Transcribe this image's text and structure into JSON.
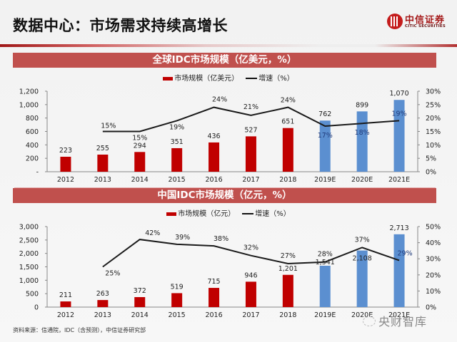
{
  "header": {
    "title": "数据中心：市场需求持续高增长",
    "logo_cn": "中信证券",
    "logo_en": "CITIC SECURITIES"
  },
  "colors": {
    "actual_bar": "#c00000",
    "forecast_bar": "#5b8fd0",
    "growth_line": "#1a1a1a",
    "banner": "#c0504d",
    "forecast_label": "#1f3a7a"
  },
  "chart_data": [
    {
      "type": "bar",
      "title": "全球IDC市场规模（亿美元，%）",
      "legend": {
        "bar": "市场规模（亿美元）",
        "line": "增速（%）"
      },
      "legend_position": "top-center",
      "categories": [
        "2012",
        "2013",
        "2014",
        "2015",
        "2016",
        "2017",
        "2018",
        "2019E",
        "2020E",
        "2021E"
      ],
      "series": [
        {
          "name": "市场规模（亿美元）",
          "type": "bar",
          "axis": "left",
          "values": [
            223,
            255,
            294,
            351,
            436,
            527,
            651,
            762,
            899,
            1070
          ],
          "labels": [
            "223",
            "255",
            "294",
            "351",
            "436",
            "527",
            "651",
            "762",
            "899",
            "1,070"
          ],
          "forecast_from_index": 7
        },
        {
          "name": "增速（%）",
          "type": "line",
          "axis": "right",
          "values": [
            null,
            15,
            15,
            19,
            24,
            21,
            24,
            17,
            18,
            19
          ],
          "labels": [
            "",
            "15%",
            "15%",
            "19%",
            "24%",
            "21%",
            "24%",
            "17%",
            "18%",
            "19%"
          ]
        }
      ],
      "y_left": {
        "ylim": [
          0,
          1200
        ],
        "ticks": [
          "-",
          "200",
          "400",
          "600",
          "800",
          "1,000",
          "1,200"
        ]
      },
      "y_right": {
        "ylim": [
          0,
          30
        ],
        "ticks": [
          "0%",
          "5%",
          "10%",
          "15%",
          "20%",
          "25%",
          "30%"
        ]
      },
      "grid": false
    },
    {
      "type": "bar",
      "title": "中国IDC市场规模（亿元，%）",
      "legend": {
        "bar": "市场规模（亿元）",
        "line": "增速（%）"
      },
      "legend_position": "top-center",
      "categories": [
        "2012",
        "2013",
        "2014",
        "2015",
        "2016",
        "2017",
        "2018",
        "2019E",
        "2020E",
        "2021E"
      ],
      "series": [
        {
          "name": "市场规模（亿元）",
          "type": "bar",
          "axis": "left",
          "values": [
            211,
            263,
            372,
            519,
            715,
            946,
            1201,
            1541,
            2108,
            2713
          ],
          "labels": [
            "211",
            "263",
            "372",
            "519",
            "715",
            "946",
            "1,201",
            "1,541",
            "2,108",
            "2,713"
          ],
          "forecast_from_index": 7
        },
        {
          "name": "增速（%）",
          "type": "line",
          "axis": "right",
          "values": [
            null,
            25,
            42,
            39,
            38,
            32,
            27,
            28,
            37,
            29
          ],
          "labels": [
            "",
            "25%",
            "42%",
            "39%",
            "38%",
            "32%",
            "27%",
            "28%",
            "37%",
            "29%"
          ]
        }
      ],
      "y_left": {
        "ylim": [
          0,
          3000
        ],
        "ticks": [
          "0",
          "500",
          "1,000",
          "1,500",
          "2,000",
          "2,500",
          "3,000"
        ]
      },
      "y_right": {
        "ylim": [
          0,
          50
        ],
        "ticks": [
          "0%",
          "10%",
          "20%",
          "30%",
          "40%",
          "50%"
        ]
      },
      "grid": false
    }
  ],
  "footer": {
    "source": "资料来源：信通院，IDC（含预测），中信证券研究部",
    "watermark": "央财智库"
  }
}
